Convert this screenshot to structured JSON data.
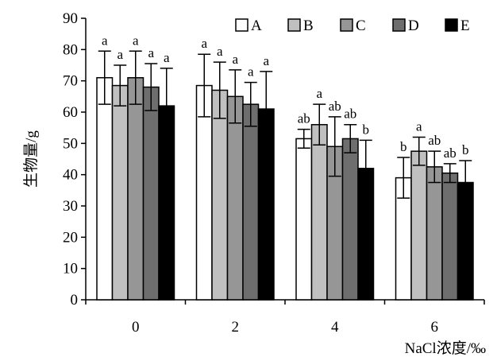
{
  "chart_data": {
    "type": "bar",
    "ylabel": "生物量/g",
    "xlabel": "NaCl浓度/‰",
    "categories": [
      "0",
      "2",
      "4",
      "6"
    ],
    "ylim": [
      0,
      90
    ],
    "yticks": [
      0,
      10,
      20,
      30,
      40,
      50,
      60,
      70,
      80,
      90
    ],
    "grid": false,
    "legend_position": "top-right",
    "series": [
      {
        "name": "A",
        "color": "#ffffff",
        "values": [
          71,
          68.5,
          51.5,
          39
        ],
        "errors": [
          8.5,
          10,
          3,
          6.5
        ],
        "sig": [
          "a",
          "a",
          "ab",
          "b"
        ]
      },
      {
        "name": "B",
        "color": "#c0c0c0",
        "values": [
          68.5,
          67,
          56,
          47.5
        ],
        "errors": [
          6.5,
          9,
          6.5,
          4.5
        ],
        "sig": [
          "a",
          "a",
          "a",
          "a"
        ]
      },
      {
        "name": "C",
        "color": "#969696",
        "values": [
          71,
          65,
          49,
          42.5
        ],
        "errors": [
          8.5,
          8.5,
          9.5,
          5
        ],
        "sig": [
          "a",
          "a",
          "ab",
          "ab"
        ]
      },
      {
        "name": "D",
        "color": "#6e6e6e",
        "values": [
          68,
          62.5,
          51.5,
          40.5
        ],
        "errors": [
          7.5,
          7,
          4.5,
          3
        ],
        "sig": [
          "a",
          "a",
          "ab",
          "ab"
        ]
      },
      {
        "name": "E",
        "color": "#000000",
        "values": [
          62,
          61,
          42,
          37.5
        ],
        "errors": [
          12,
          12,
          9,
          7
        ],
        "sig": [
          "a",
          "a",
          "b",
          "b"
        ]
      }
    ]
  }
}
